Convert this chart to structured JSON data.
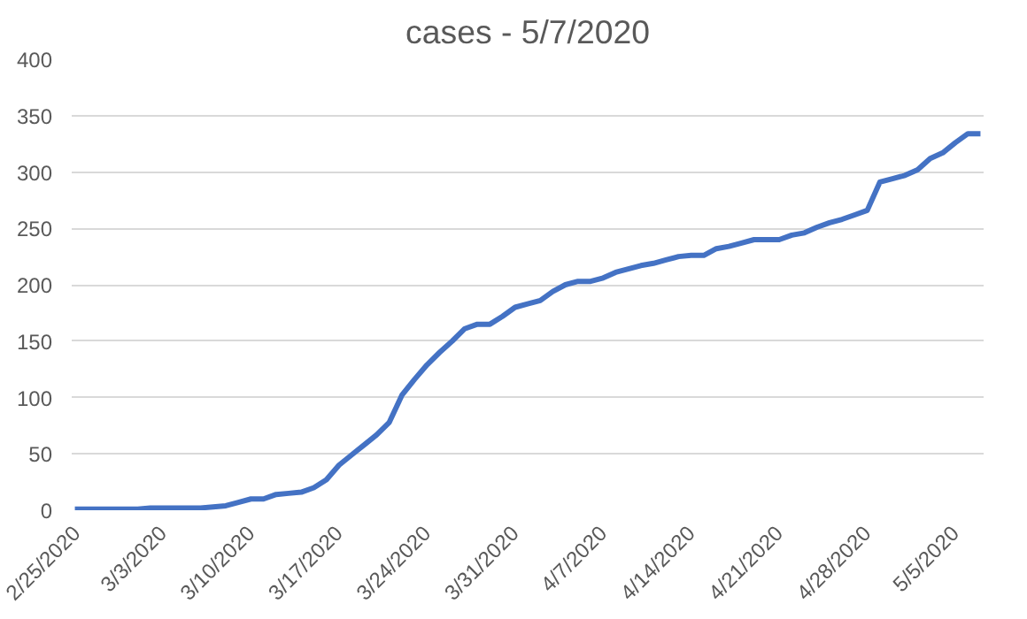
{
  "chart_data": {
    "type": "line",
    "title": "cases - 5/7/2020",
    "x": [
      "2020-02-25",
      "2020-02-26",
      "2020-02-27",
      "2020-02-28",
      "2020-02-29",
      "2020-03-01",
      "2020-03-02",
      "2020-03-03",
      "2020-03-04",
      "2020-03-05",
      "2020-03-06",
      "2020-03-07",
      "2020-03-08",
      "2020-03-09",
      "2020-03-10",
      "2020-03-11",
      "2020-03-12",
      "2020-03-13",
      "2020-03-14",
      "2020-03-15",
      "2020-03-16",
      "2020-03-17",
      "2020-03-18",
      "2020-03-19",
      "2020-03-20",
      "2020-03-21",
      "2020-03-22",
      "2020-03-23",
      "2020-03-24",
      "2020-03-25",
      "2020-03-26",
      "2020-03-27",
      "2020-03-28",
      "2020-03-29",
      "2020-03-30",
      "2020-03-31",
      "2020-04-01",
      "2020-04-02",
      "2020-04-03",
      "2020-04-04",
      "2020-04-05",
      "2020-04-06",
      "2020-04-07",
      "2020-04-08",
      "2020-04-09",
      "2020-04-10",
      "2020-04-11",
      "2020-04-12",
      "2020-04-13",
      "2020-04-14",
      "2020-04-15",
      "2020-04-16",
      "2020-04-17",
      "2020-04-18",
      "2020-04-19",
      "2020-04-20",
      "2020-04-21",
      "2020-04-22",
      "2020-04-23",
      "2020-04-24",
      "2020-04-25",
      "2020-04-26",
      "2020-04-27",
      "2020-04-28",
      "2020-04-29",
      "2020-04-30",
      "2020-05-01",
      "2020-05-02",
      "2020-05-03",
      "2020-05-04",
      "2020-05-05",
      "2020-05-06",
      "2020-05-07"
    ],
    "series": [
      {
        "color": "#4472c4",
        "values": [
          1,
          1,
          1,
          1,
          1,
          1,
          2,
          2,
          2,
          2,
          2,
          3,
          4,
          7,
          10,
          10,
          14,
          15,
          16,
          20,
          27,
          40,
          49,
          58,
          67,
          78,
          102,
          116,
          129,
          140,
          150,
          161,
          165,
          165,
          172,
          180,
          183,
          186,
          194,
          200,
          203,
          203,
          206,
          211,
          214,
          217,
          219,
          222,
          225,
          226,
          226,
          232,
          234,
          237,
          240,
          240,
          240,
          244,
          246,
          251,
          255,
          258,
          262,
          266,
          291,
          294,
          297,
          302,
          312,
          317,
          326,
          334,
          334
        ]
      }
    ],
    "ylim": [
      0,
      400
    ],
    "yticks": [
      0,
      50,
      100,
      150,
      200,
      250,
      300,
      350,
      400
    ],
    "xticks": [
      {
        "value": "2020-02-25",
        "label": "2/25/2020"
      },
      {
        "value": "2020-03-03",
        "label": "3/3/2020"
      },
      {
        "value": "2020-03-10",
        "label": "3/10/2020"
      },
      {
        "value": "2020-03-17",
        "label": "3/17/2020"
      },
      {
        "value": "2020-03-24",
        "label": "3/24/2020"
      },
      {
        "value": "2020-03-31",
        "label": "3/31/2020"
      },
      {
        "value": "2020-04-07",
        "label": "4/7/2020"
      },
      {
        "value": "2020-04-14",
        "label": "4/14/2020"
      },
      {
        "value": "2020-04-21",
        "label": "4/21/2020"
      },
      {
        "value": "2020-04-28",
        "label": "4/28/2020"
      },
      {
        "value": "2020-05-05",
        "label": "5/5/2020"
      }
    ],
    "xlim": [
      "2020-02-24T18:00",
      "2020-05-07T06:00"
    ],
    "grid": "y",
    "line_style": "solid"
  }
}
